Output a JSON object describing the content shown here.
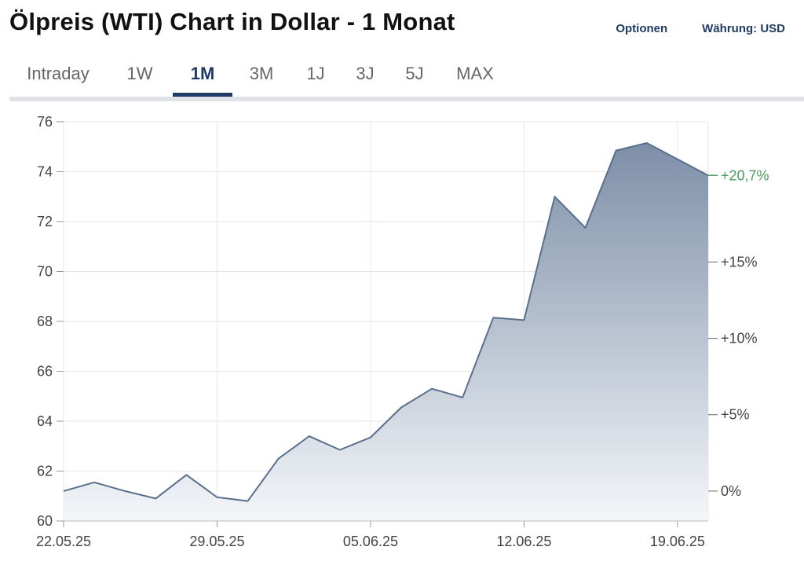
{
  "header": {
    "title": "Ölpreis (WTI) Chart in Dollar - 1 Monat",
    "options_label": "Optionen",
    "currency_label": "Währung: USD"
  },
  "tabs": [
    {
      "label": "Intraday",
      "active": false
    },
    {
      "label": "1W",
      "active": false
    },
    {
      "label": "1M",
      "active": true
    },
    {
      "label": "3M",
      "active": false
    },
    {
      "label": "1J",
      "active": false
    },
    {
      "label": "3J",
      "active": false
    },
    {
      "label": "5J",
      "active": false
    },
    {
      "label": "MAX",
      "active": false
    }
  ],
  "colors": {
    "line": "#5a6f8c",
    "fill_top": "#7d8fa8",
    "fill_bottom": "#f4f6f9",
    "active_tab": "#1f3b66",
    "positive": "#4a9a5c",
    "grid": "#e3e6ea"
  },
  "chart_data": {
    "type": "area",
    "x": [
      "22.05.25",
      "23.05.25",
      "26.05.25",
      "27.05.25",
      "28.05.25",
      "29.05.25",
      "30.05.25",
      "02.06.25",
      "03.06.25",
      "04.06.25",
      "05.06.25",
      "06.06.25",
      "09.06.25",
      "10.06.25",
      "11.06.25",
      "12.06.25",
      "13.06.25",
      "16.06.25",
      "17.06.25",
      "18.06.25",
      "19.06.25",
      "20.06.25"
    ],
    "values": [
      61.2,
      61.55,
      61.2,
      60.9,
      61.85,
      60.95,
      60.8,
      62.5,
      63.4,
      62.85,
      63.35,
      64.55,
      65.3,
      64.95,
      68.15,
      68.05,
      73.0,
      71.75,
      74.85,
      75.15,
      74.5,
      73.85
    ],
    "x_tick_labels": [
      "22.05.25",
      "29.05.25",
      "05.06.25",
      "12.06.25",
      "19.06.25"
    ],
    "ylim": [
      60,
      76
    ],
    "y_ticks": [
      60,
      62,
      64,
      66,
      68,
      70,
      72,
      74,
      76
    ],
    "y2_ticks": [
      {
        "value": 61.2,
        "label": "0%"
      },
      {
        "value": 64.26,
        "label": "+5%"
      },
      {
        "value": 67.32,
        "label": "+10%"
      },
      {
        "value": 70.38,
        "label": "+15%"
      }
    ],
    "last_change_label": "+20,7%",
    "grid": true
  }
}
